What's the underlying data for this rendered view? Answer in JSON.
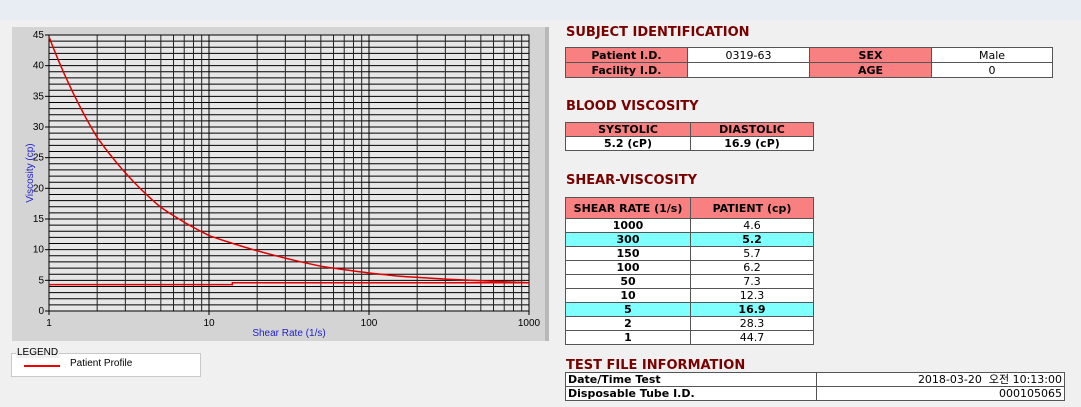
{
  "chart_data": {
    "type": "line",
    "xlabel": "Shear Rate (1/s)",
    "ylabel": "Viscosity (cp)",
    "x_scale": "log",
    "xlim": [
      1,
      1000
    ],
    "ylim": [
      0,
      45
    ],
    "x_ticks": [
      "1",
      "10",
      "100",
      "1000"
    ],
    "y_ticks": [
      "0",
      "5",
      "10",
      "15",
      "20",
      "25",
      "30",
      "35",
      "40",
      "45"
    ],
    "grid": true,
    "series": [
      {
        "name": "Patient Profile",
        "x": [
          1,
          2,
          5,
          10,
          50,
          100,
          150,
          300,
          1000
        ],
        "y": [
          44.7,
          28.3,
          16.9,
          12.3,
          7.3,
          6.2,
          5.7,
          5.2,
          4.6
        ],
        "color": "#e00000"
      },
      {
        "x": [
          1,
          14,
          14,
          1000
        ],
        "y": [
          4.3,
          4.3,
          4.6,
          4.6
        ],
        "color": "#e00000"
      }
    ],
    "legend": {
      "title": "LEGEND",
      "placement": "bottom-left"
    }
  },
  "subject": {
    "title": "SUBJECT IDENTIFICATION",
    "patient_id_label": "Patient I.D.",
    "patient_id": "0319-63",
    "sex_label": "SEX",
    "sex": "Male",
    "facility_id_label": "Facility I.D.",
    "facility_id": "",
    "age_label": "AGE",
    "age": "0"
  },
  "blood": {
    "title": "BLOOD VISCOSITY",
    "systolic_label": "SYSTOLIC",
    "diastolic_label": "DIASTOLIC",
    "systolic": "5.2 (cP)",
    "diastolic": "16.9 (cP)"
  },
  "shear": {
    "title": "SHEAR-VISCOSITY",
    "headers": [
      "SHEAR RATE (1/s)",
      "PATIENT (cp)"
    ],
    "rows": [
      {
        "rate": "1000",
        "value": "4.6",
        "highlight": false
      },
      {
        "rate": "300",
        "value": "5.2",
        "highlight": true
      },
      {
        "rate": "150",
        "value": "5.7",
        "highlight": false
      },
      {
        "rate": "100",
        "value": "6.2",
        "highlight": false
      },
      {
        "rate": "50",
        "value": "7.3",
        "highlight": false
      },
      {
        "rate": "10",
        "value": "12.3",
        "highlight": false
      },
      {
        "rate": "5",
        "value": "16.9",
        "highlight": true
      },
      {
        "rate": "2",
        "value": "28.3",
        "highlight": false
      },
      {
        "rate": "1",
        "value": "44.7",
        "highlight": false
      }
    ],
    "highlight_color": "#80ffff"
  },
  "testfile": {
    "title": "TEST FILE INFORMATION",
    "date_label": "Date/Time Test",
    "date": "2018-03-20  오전 10:13:00",
    "tube_label": "Disposable Tube I.D.",
    "tube": "000105065"
  }
}
